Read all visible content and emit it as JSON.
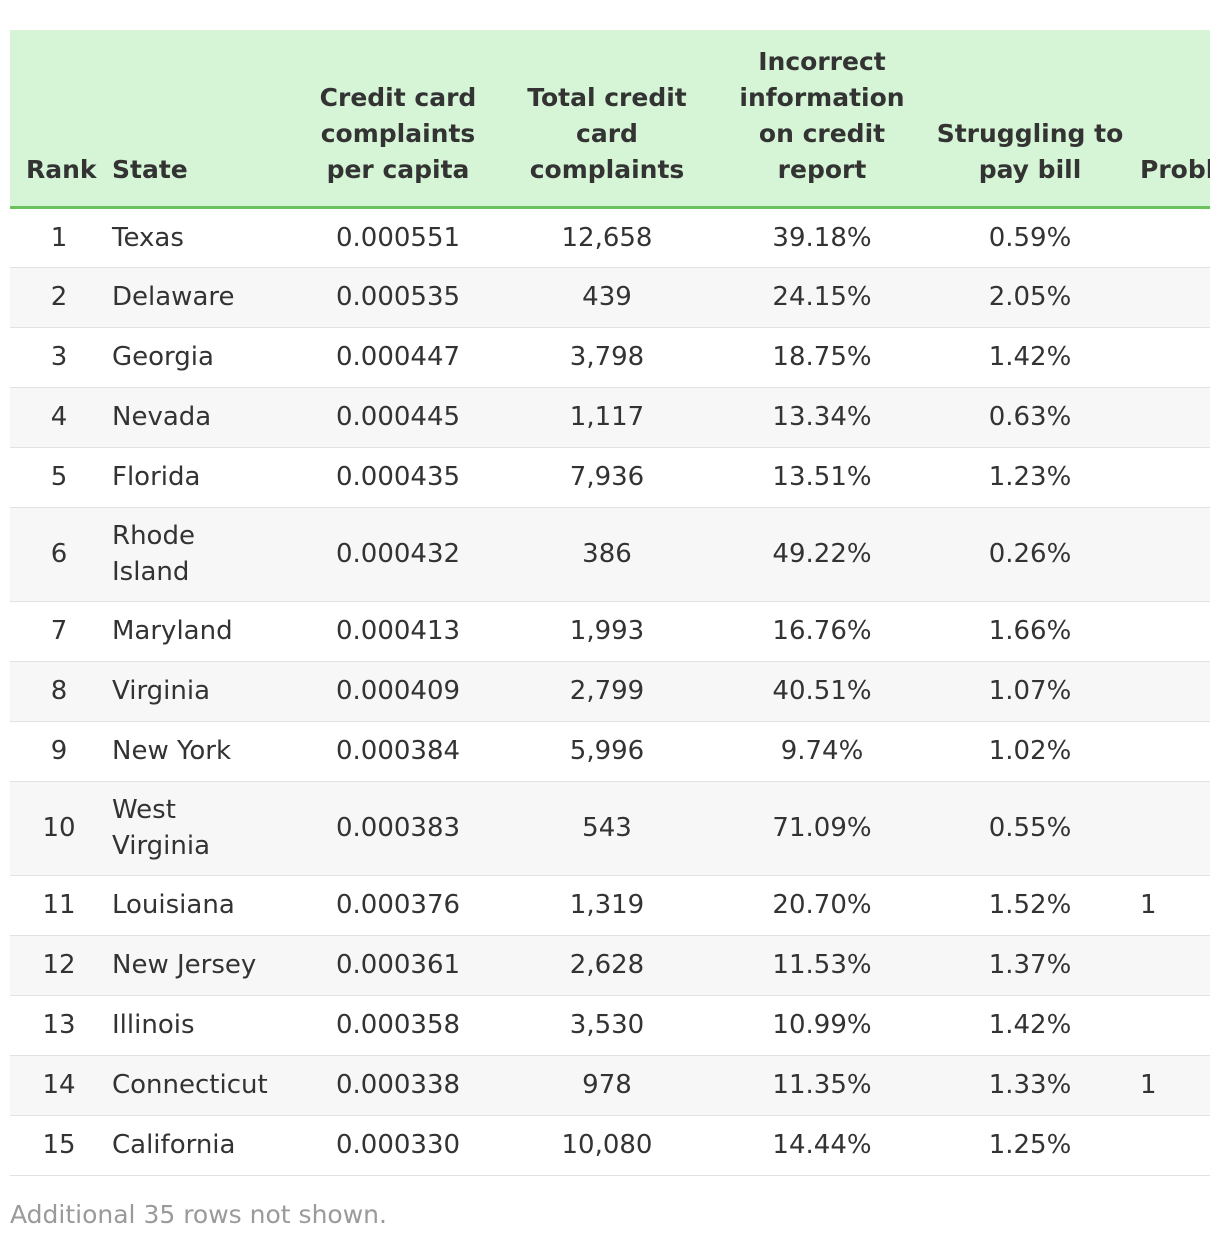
{
  "table": {
    "headers": [
      "Rank",
      "State",
      "Credit card complaints per capita",
      "Total credit card complaints",
      "Incorrect information on credit report",
      "Struggling to pay bill",
      "Problem with purchase shown on statement"
    ],
    "rows": [
      {
        "rank": "1",
        "state": "Texas",
        "per_capita": "0.000551",
        "total": "12,658",
        "incorrect": "39.18%",
        "struggling": "0.59%",
        "extra": ""
      },
      {
        "rank": "2",
        "state": "Delaware",
        "per_capita": "0.000535",
        "total": "439",
        "incorrect": "24.15%",
        "struggling": "2.05%",
        "extra": ""
      },
      {
        "rank": "3",
        "state": "Georgia",
        "per_capita": "0.000447",
        "total": "3,798",
        "incorrect": "18.75%",
        "struggling": "1.42%",
        "extra": ""
      },
      {
        "rank": "4",
        "state": "Nevada",
        "per_capita": "0.000445",
        "total": "1,117",
        "incorrect": "13.34%",
        "struggling": "0.63%",
        "extra": ""
      },
      {
        "rank": "5",
        "state": "Florida",
        "per_capita": "0.000435",
        "total": "7,936",
        "incorrect": "13.51%",
        "struggling": "1.23%",
        "extra": ""
      },
      {
        "rank": "6",
        "state": "Rhode Island",
        "per_capita": "0.000432",
        "total": "386",
        "incorrect": "49.22%",
        "struggling": "0.26%",
        "extra": ""
      },
      {
        "rank": "7",
        "state": "Maryland",
        "per_capita": "0.000413",
        "total": "1,993",
        "incorrect": "16.76%",
        "struggling": "1.66%",
        "extra": ""
      },
      {
        "rank": "8",
        "state": "Virginia",
        "per_capita": "0.000409",
        "total": "2,799",
        "incorrect": "40.51%",
        "struggling": "1.07%",
        "extra": ""
      },
      {
        "rank": "9",
        "state": "New York",
        "per_capita": "0.000384",
        "total": "5,996",
        "incorrect": "9.74%",
        "struggling": "1.02%",
        "extra": ""
      },
      {
        "rank": "10",
        "state": "West Virginia",
        "per_capita": "0.000383",
        "total": "543",
        "incorrect": "71.09%",
        "struggling": "0.55%",
        "extra": ""
      },
      {
        "rank": "11",
        "state": "Louisiana",
        "per_capita": "0.000376",
        "total": "1,319",
        "incorrect": "20.70%",
        "struggling": "1.52%",
        "extra": "1"
      },
      {
        "rank": "12",
        "state": "New Jersey",
        "per_capita": "0.000361",
        "total": "2,628",
        "incorrect": "11.53%",
        "struggling": "1.37%",
        "extra": ""
      },
      {
        "rank": "13",
        "state": "Illinois",
        "per_capita": "0.000358",
        "total": "3,530",
        "incorrect": "10.99%",
        "struggling": "1.42%",
        "extra": ""
      },
      {
        "rank": "14",
        "state": "Connecticut",
        "per_capita": "0.000338",
        "total": "978",
        "incorrect": "11.35%",
        "struggling": "1.33%",
        "extra": "1"
      },
      {
        "rank": "15",
        "state": "California",
        "per_capita": "0.000330",
        "total": "10,080",
        "incorrect": "14.44%",
        "struggling": "1.25%",
        "extra": ""
      }
    ]
  },
  "footnote": "Additional 35 rows not shown.",
  "colors": {
    "header_bg": "#d6f5d6",
    "header_border": "#6ac25e",
    "row_alt_bg": "#f7f7f7",
    "text": "#333333",
    "footnote_text": "#9a9a9a"
  }
}
